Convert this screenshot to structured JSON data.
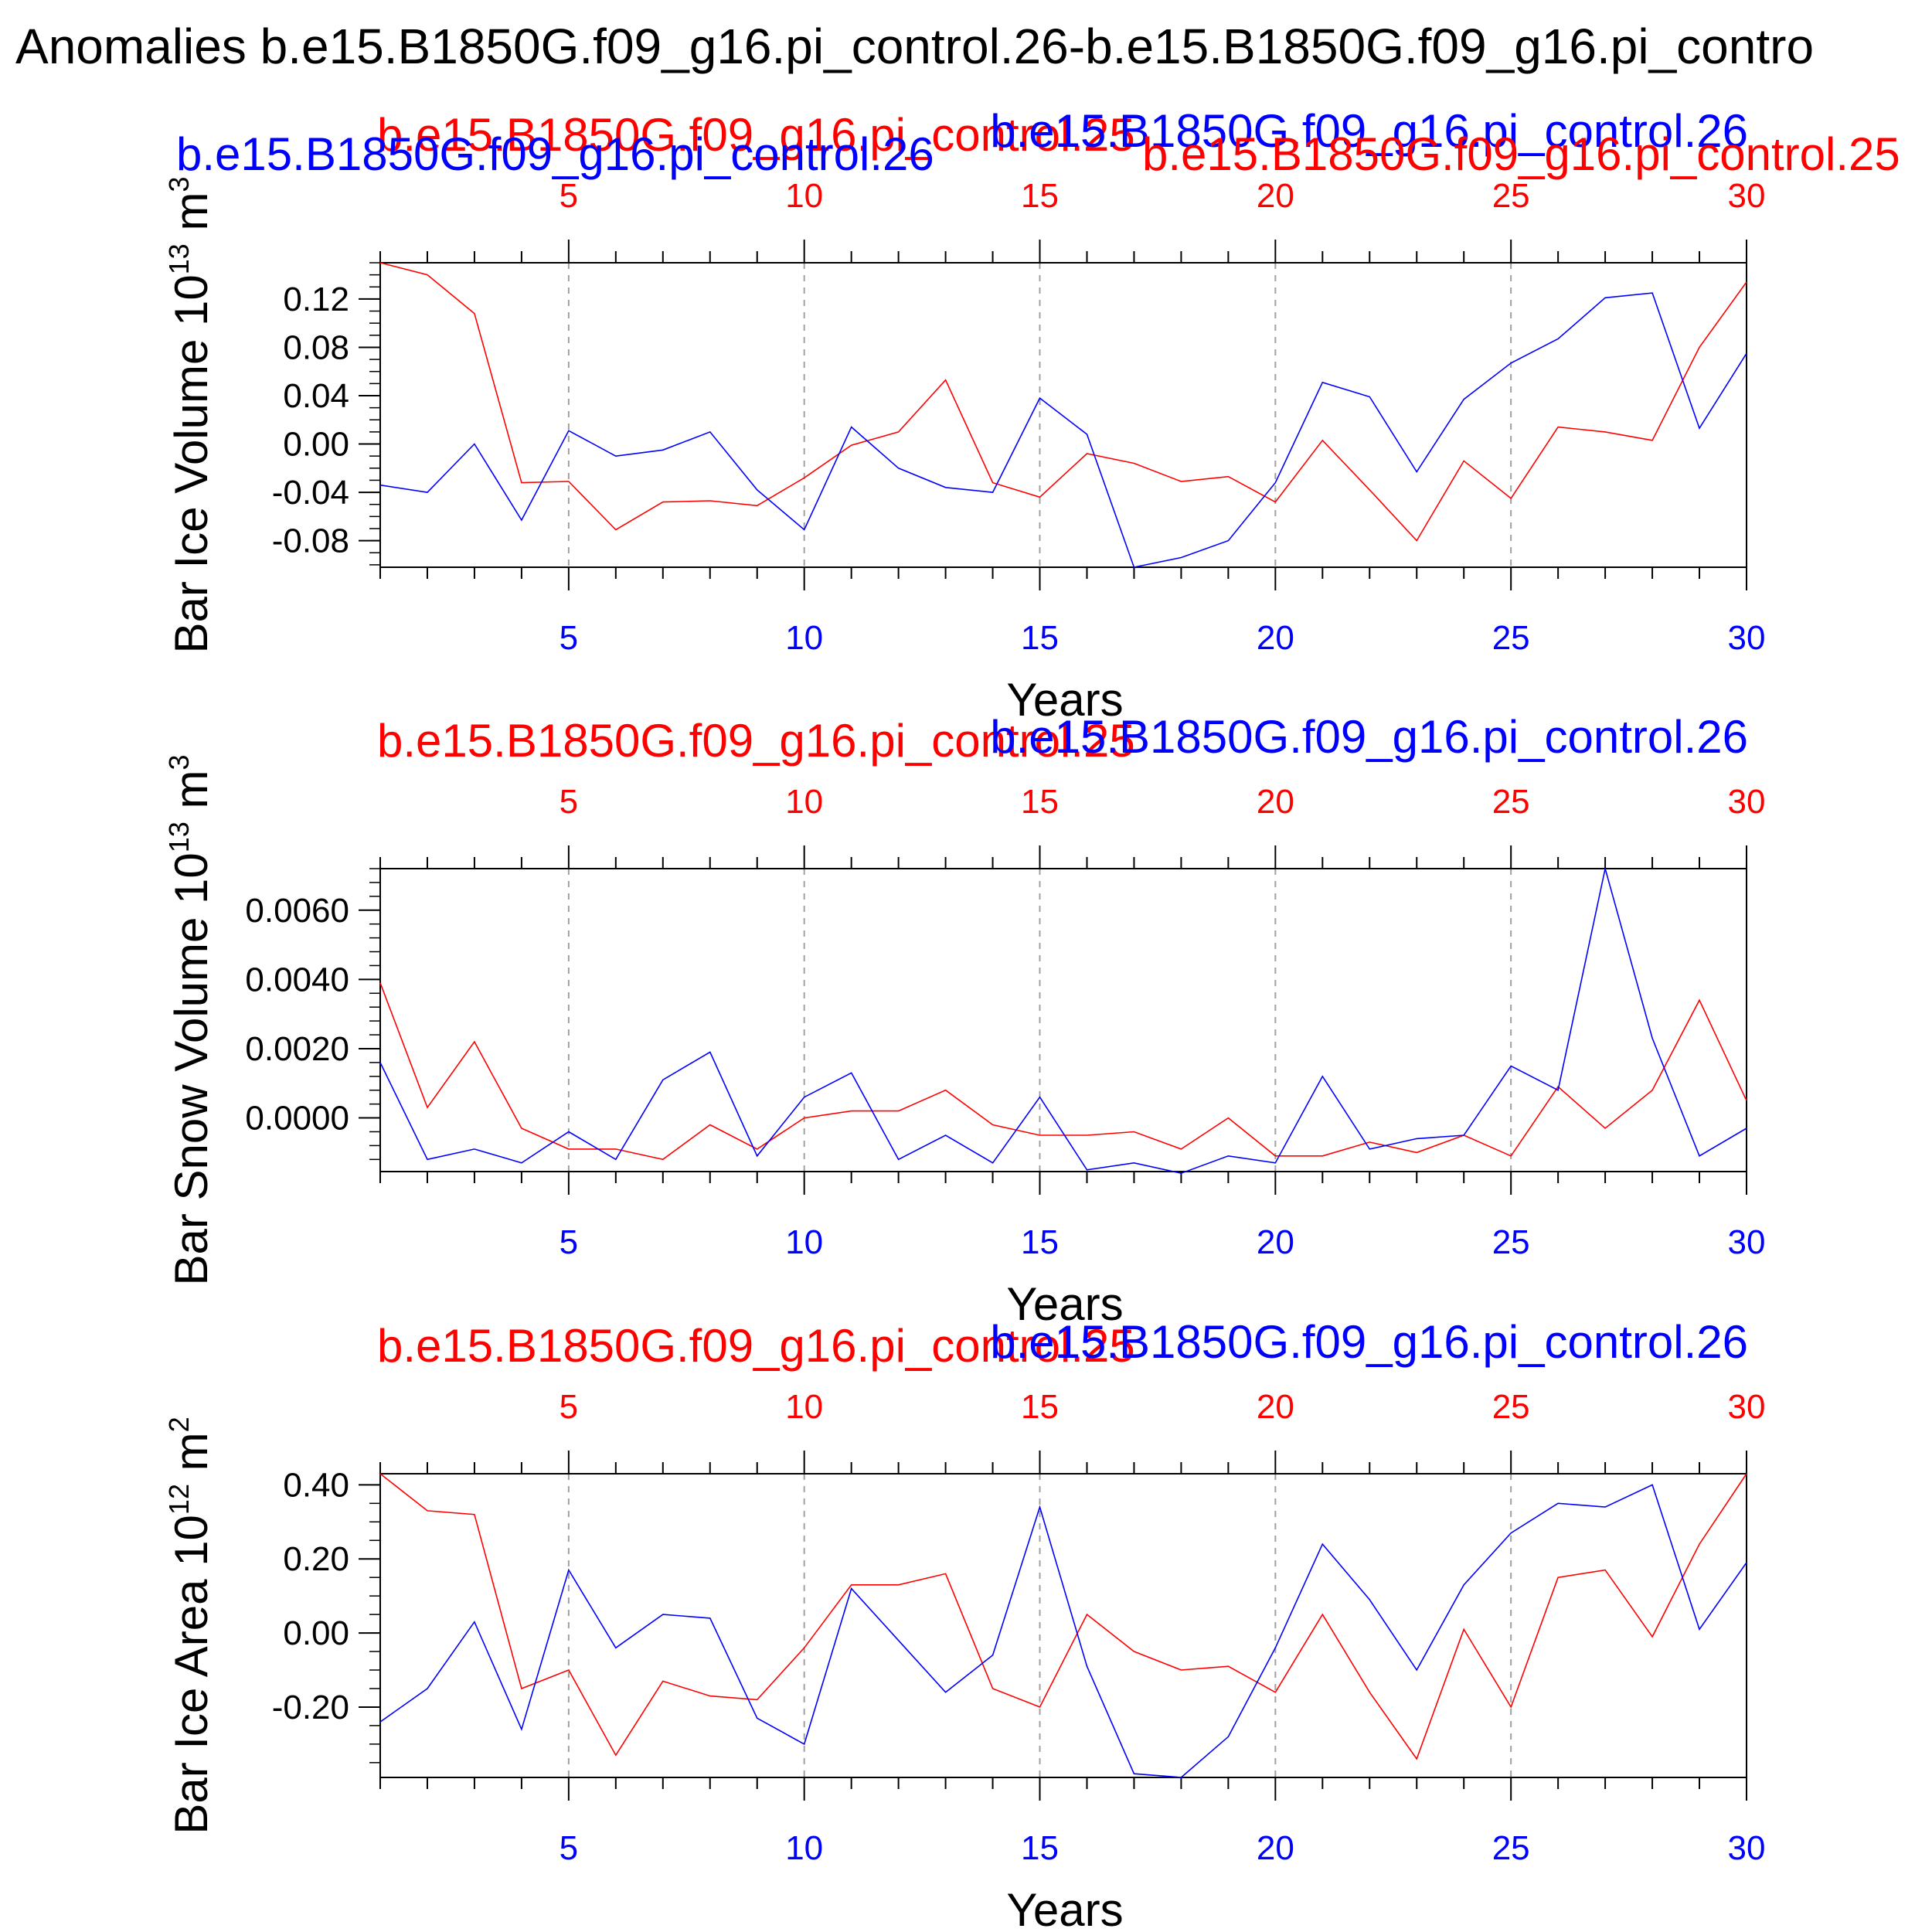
{
  "figure": {
    "title": "Anomalies b.e15.B1850G.f09_g16.pi_control.26-b.e15.B1850G.f09_g16.pi_contro",
    "top_chart_extra_label": "b.e15.B1850G.f09_g16.pi_control.25"
  },
  "colors": {
    "run25": "#ff0000",
    "run26": "#0000ff",
    "axis": "#000000",
    "grid": "#a0a0a0"
  },
  "chart_data": [
    {
      "type": "line",
      "ylabel": "Bar Ice Volume 10",
      "ylabel_exp": "13",
      "ylabel_unit": " m",
      "ylabel_unit_exp": "3",
      "xlabel": "Years",
      "xlim": [
        1,
        30
      ],
      "ylim": [
        -0.102,
        0.15
      ],
      "yticks": [
        -0.08,
        -0.04,
        0.0,
        0.04,
        0.08,
        0.12
      ],
      "yticklabels": [
        "-0.08",
        "-0.04",
        "0.00",
        "0.04",
        "0.08",
        "0.12"
      ],
      "yminor_step": 0.01,
      "xticks": [
        5,
        10,
        15,
        20,
        25,
        30
      ],
      "xticklabels": [
        "5",
        "10",
        "15",
        "20",
        "25",
        "30"
      ],
      "x": [
        1,
        2,
        3,
        4,
        5,
        6,
        7,
        8,
        9,
        10,
        11,
        12,
        13,
        14,
        15,
        16,
        17,
        18,
        19,
        20,
        21,
        22,
        23,
        24,
        25,
        26,
        27,
        28,
        29,
        30
      ],
      "series": [
        {
          "name": "b.e15.B1850G.f09_g16.pi_control.25",
          "color": "#ff0000",
          "values": [
            0.15,
            0.14,
            0.108,
            -0.032,
            -0.031,
            -0.071,
            -0.048,
            -0.047,
            -0.051,
            -0.028,
            -0.001,
            0.01,
            0.053,
            -0.032,
            -0.044,
            -0.008,
            -0.016,
            -0.031,
            -0.027,
            -0.048,
            0.003,
            -0.038,
            -0.08,
            -0.014,
            -0.045,
            0.014,
            0.01,
            0.003,
            0.08,
            0.134
          ]
        },
        {
          "name": "b.e15.B1850G.f09_g16.pi_control.26",
          "color": "#0000ff",
          "values": [
            -0.034,
            -0.04,
            0.0,
            -0.063,
            0.011,
            -0.01,
            -0.005,
            0.01,
            -0.038,
            -0.071,
            0.014,
            -0.02,
            -0.036,
            -0.04,
            0.038,
            0.008,
            -0.102,
            -0.094,
            -0.08,
            -0.032,
            0.051,
            0.039,
            -0.023,
            0.037,
            0.067,
            0.087,
            0.121,
            0.125,
            0.013,
            0.075
          ]
        }
      ]
    },
    {
      "type": "line",
      "ylabel": "Bar Snow Volume 10",
      "ylabel_exp": "13",
      "ylabel_unit": " m",
      "ylabel_unit_exp": "3",
      "xlabel": "Years",
      "xlim": [
        1,
        30
      ],
      "ylim": [
        -0.00155,
        0.0072
      ],
      "yticks": [
        0.0,
        0.002,
        0.004,
        0.006
      ],
      "yticklabels": [
        "0.0000",
        "0.0020",
        "0.0040",
        "0.0060"
      ],
      "yminor_step": 0.0004,
      "xticks": [
        5,
        10,
        15,
        20,
        25,
        30
      ],
      "xticklabels": [
        "5",
        "10",
        "15",
        "20",
        "25",
        "30"
      ],
      "x": [
        1,
        2,
        3,
        4,
        5,
        6,
        7,
        8,
        9,
        10,
        11,
        12,
        13,
        14,
        15,
        16,
        17,
        18,
        19,
        20,
        21,
        22,
        23,
        24,
        25,
        26,
        27,
        28,
        29,
        30
      ],
      "series": [
        {
          "name": "b.e15.B1850G.f09_g16.pi_control.25",
          "color": "#ff0000",
          "values": [
            0.0039,
            0.0003,
            0.0022,
            -0.0003,
            -0.0009,
            -0.0009,
            -0.0012,
            -0.0002,
            -0.0009,
            0.0,
            0.0002,
            0.0002,
            0.0008,
            -0.0002,
            -0.0005,
            -0.0005,
            -0.0004,
            -0.0009,
            0.0,
            -0.0011,
            -0.0011,
            -0.0007,
            -0.001,
            -0.0005,
            -0.0011,
            0.0009,
            -0.0003,
            0.0008,
            0.0034,
            0.0005
          ]
        },
        {
          "name": "b.e15.B1850G.f09_g16.pi_control.26",
          "color": "#0000ff",
          "values": [
            0.0016,
            -0.0012,
            -0.0009,
            -0.0013,
            -0.0004,
            -0.0012,
            0.0011,
            0.0019,
            -0.0011,
            0.0006,
            0.0013,
            -0.0012,
            -0.0005,
            -0.0013,
            0.0006,
            -0.0015,
            -0.0013,
            -0.0016,
            -0.0011,
            -0.0013,
            0.0012,
            -0.0009,
            -0.0006,
            -0.0005,
            0.0015,
            0.0008,
            0.0072,
            0.0023,
            -0.0011,
            -0.0003
          ]
        }
      ]
    },
    {
      "type": "line",
      "ylabel": "Bar Ice Area 10",
      "ylabel_exp": "12",
      "ylabel_unit": " m",
      "ylabel_unit_exp": "2",
      "xlabel": "Years",
      "xlim": [
        1,
        30
      ],
      "ylim": [
        -0.39,
        0.43
      ],
      "yticks": [
        -0.2,
        0.0,
        0.2,
        0.4
      ],
      "yticklabels": [
        "-0.20",
        "0.00",
        "0.20",
        "0.40"
      ],
      "yminor_step": 0.05,
      "xticks": [
        5,
        10,
        15,
        20,
        25,
        30
      ],
      "xticklabels": [
        "5",
        "10",
        "15",
        "20",
        "25",
        "30"
      ],
      "x": [
        1,
        2,
        3,
        4,
        5,
        6,
        7,
        8,
        9,
        10,
        11,
        12,
        13,
        14,
        15,
        16,
        17,
        18,
        19,
        20,
        21,
        22,
        23,
        24,
        25,
        26,
        27,
        28,
        29,
        30
      ],
      "series": [
        {
          "name": "b.e15.B1850G.f09_g16.pi_control.25",
          "color": "#ff0000",
          "values": [
            0.43,
            0.33,
            0.32,
            -0.15,
            -0.1,
            -0.33,
            -0.13,
            -0.17,
            -0.18,
            -0.04,
            0.13,
            0.13,
            0.16,
            -0.15,
            -0.2,
            0.05,
            -0.05,
            -0.1,
            -0.09,
            -0.16,
            0.05,
            -0.16,
            -0.34,
            0.01,
            -0.2,
            0.15,
            0.17,
            -0.01,
            0.24,
            0.43
          ]
        },
        {
          "name": "b.e15.B1850G.f09_g16.pi_control.26",
          "color": "#0000ff",
          "values": [
            -0.24,
            -0.15,
            0.03,
            -0.26,
            0.17,
            -0.04,
            0.05,
            0.04,
            -0.23,
            -0.3,
            0.12,
            -0.02,
            -0.16,
            -0.06,
            0.34,
            -0.09,
            -0.38,
            -0.39,
            -0.28,
            -0.04,
            0.24,
            0.09,
            -0.1,
            0.13,
            0.27,
            0.35,
            0.34,
            0.4,
            0.01,
            0.19
          ]
        }
      ]
    }
  ]
}
